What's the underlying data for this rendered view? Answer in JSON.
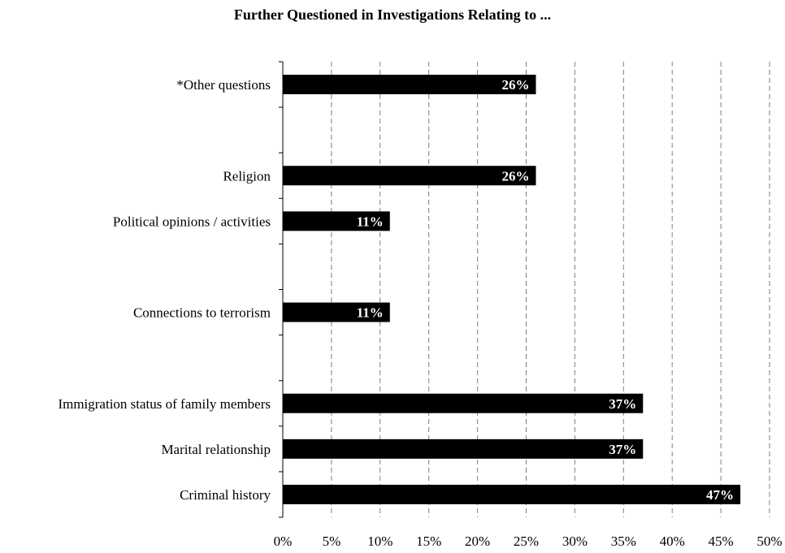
{
  "chart_data": {
    "type": "bar",
    "orientation": "horizontal",
    "title": "Further Questioned in Investigations Relating to ...",
    "categories": [
      "*Other questions",
      "",
      "Religion",
      "Political opinions / activities",
      "",
      "Connections to terrorism",
      "",
      "Immigration status of family members",
      "Marital relationship",
      "Criminal history"
    ],
    "values": [
      26,
      null,
      26,
      11,
      null,
      11,
      null,
      37,
      37,
      47
    ],
    "data_labels": [
      "26%",
      "",
      "26%",
      "11%",
      "",
      "11%",
      "",
      "37%",
      "37%",
      "47%"
    ],
    "xlim": [
      0,
      50
    ],
    "x_ticks": [
      0,
      5,
      10,
      15,
      20,
      25,
      30,
      35,
      40,
      45,
      50
    ],
    "x_tick_labels": [
      "0%",
      "5%",
      "10%",
      "15%",
      "20%",
      "25%",
      "30%",
      "35%",
      "40%",
      "45%",
      "50%"
    ],
    "xlabel": "",
    "ylabel": "",
    "grid": "vertical dashed",
    "bar_color": "#000000",
    "label_color": "#ffffff"
  }
}
